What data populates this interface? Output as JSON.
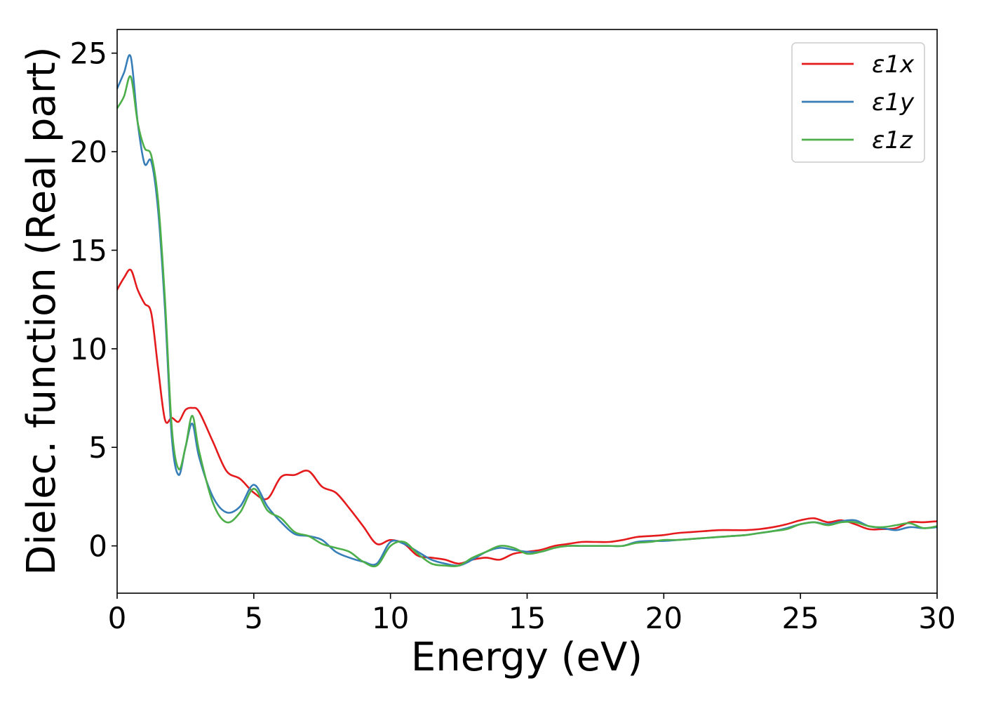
{
  "chart_data": {
    "type": "line",
    "title": "",
    "xlabel": "Energy (eV)",
    "ylabel": "Dielec. function (Real part)",
    "xlim": [
      0,
      30
    ],
    "ylim": [
      -2.4,
      26.2
    ],
    "xticks": [
      0,
      5,
      10,
      15,
      20,
      25,
      30
    ],
    "yticks": [
      0,
      5,
      10,
      15,
      20,
      25
    ],
    "grid": false,
    "legend_position": "top-right",
    "series": [
      {
        "name": "ε1x",
        "color": "#e41a1c",
        "x": [
          0,
          0.25,
          0.5,
          0.75,
          1.0,
          1.25,
          1.5,
          1.75,
          2.0,
          2.25,
          2.5,
          2.75,
          3.0,
          3.5,
          4.0,
          4.5,
          5.0,
          5.5,
          6.0,
          6.5,
          7.0,
          7.5,
          8.0,
          8.5,
          9.0,
          9.5,
          10.0,
          10.5,
          11.0,
          11.5,
          12.0,
          12.5,
          13.0,
          13.5,
          14.0,
          14.5,
          15.0,
          15.5,
          16.0,
          16.5,
          17.0,
          17.5,
          18.0,
          18.5,
          19.0,
          19.5,
          20.0,
          20.5,
          21.0,
          21.5,
          22.0,
          22.5,
          23.0,
          23.5,
          24.0,
          24.5,
          25.0,
          25.5,
          26.0,
          26.5,
          27.0,
          27.5,
          28.0,
          28.5,
          29.0,
          29.5,
          30.0
        ],
        "values": [
          13.0,
          13.6,
          14.0,
          13.0,
          12.3,
          11.8,
          9.0,
          6.4,
          6.5,
          6.3,
          6.9,
          7.0,
          6.8,
          5.3,
          3.8,
          3.4,
          2.7,
          2.4,
          3.5,
          3.6,
          3.8,
          3.0,
          2.7,
          1.9,
          1.0,
          0.1,
          0.3,
          0.1,
          -0.5,
          -0.6,
          -0.7,
          -0.9,
          -0.7,
          -0.6,
          -0.7,
          -0.4,
          -0.3,
          -0.2,
          0.0,
          0.1,
          0.2,
          0.2,
          0.2,
          0.3,
          0.45,
          0.5,
          0.55,
          0.65,
          0.7,
          0.75,
          0.8,
          0.8,
          0.8,
          0.85,
          0.95,
          1.1,
          1.3,
          1.4,
          1.2,
          1.3,
          1.1,
          0.85,
          0.85,
          0.9,
          1.2,
          1.2,
          1.25
        ]
      },
      {
        "name": "ε1y",
        "color": "#377eb8",
        "x": [
          0,
          0.25,
          0.5,
          0.75,
          1.0,
          1.25,
          1.5,
          1.75,
          2.0,
          2.25,
          2.5,
          2.75,
          3.0,
          3.5,
          4.0,
          4.5,
          5.0,
          5.5,
          6.0,
          6.5,
          7.0,
          7.5,
          8.0,
          8.5,
          9.0,
          9.5,
          10.0,
          10.5,
          11.0,
          11.5,
          12.0,
          12.5,
          13.0,
          13.5,
          14.0,
          14.5,
          15.0,
          15.5,
          16.0,
          16.5,
          17.0,
          17.5,
          18.0,
          18.5,
          19.0,
          19.5,
          20.0,
          20.5,
          21.0,
          21.5,
          22.0,
          22.5,
          23.0,
          23.5,
          24.0,
          24.5,
          25.0,
          25.5,
          26.0,
          26.5,
          27.0,
          27.5,
          28.0,
          28.5,
          29.0,
          29.5,
          30.0
        ],
        "values": [
          23.2,
          24.0,
          24.8,
          21.5,
          19.4,
          19.5,
          17.0,
          12.0,
          5.5,
          3.6,
          5.0,
          6.2,
          4.5,
          2.5,
          1.7,
          2.0,
          3.1,
          2.0,
          1.2,
          0.6,
          0.5,
          0.3,
          -0.3,
          -0.6,
          -0.8,
          -0.9,
          0.2,
          0.1,
          -0.3,
          -0.7,
          -0.9,
          -1.0,
          -0.7,
          -0.3,
          -0.1,
          -0.2,
          -0.3,
          -0.3,
          -0.1,
          0.0,
          0.0,
          0.0,
          0.0,
          0.0,
          0.2,
          0.25,
          0.25,
          0.3,
          0.35,
          0.4,
          0.45,
          0.5,
          0.55,
          0.65,
          0.75,
          0.9,
          1.1,
          1.2,
          1.1,
          1.25,
          1.3,
          1.0,
          0.9,
          0.8,
          0.95,
          0.9,
          0.95
        ]
      },
      {
        "name": "ε1z",
        "color": "#4daf4a",
        "x": [
          0,
          0.25,
          0.5,
          0.75,
          1.0,
          1.25,
          1.5,
          1.75,
          2.0,
          2.25,
          2.5,
          2.75,
          3.0,
          3.5,
          4.0,
          4.5,
          5.0,
          5.5,
          6.0,
          6.5,
          7.0,
          7.5,
          8.0,
          8.5,
          9.0,
          9.5,
          10.0,
          10.5,
          11.0,
          11.5,
          12.0,
          12.5,
          13.0,
          13.5,
          14.0,
          14.5,
          15.0,
          15.5,
          16.0,
          16.5,
          17.0,
          17.5,
          18.0,
          18.5,
          19.0,
          19.5,
          20.0,
          20.5,
          21.0,
          21.5,
          22.0,
          22.5,
          23.0,
          23.5,
          24.0,
          24.5,
          25.0,
          25.5,
          26.0,
          26.5,
          27.0,
          27.5,
          28.0,
          28.5,
          29.0,
          29.5,
          30.0
        ],
        "values": [
          22.2,
          22.8,
          23.8,
          21.5,
          20.2,
          19.8,
          17.5,
          12.5,
          6.0,
          3.9,
          5.0,
          6.6,
          4.8,
          2.2,
          1.2,
          1.7,
          2.9,
          1.8,
          1.4,
          0.7,
          0.5,
          0.1,
          -0.1,
          -0.3,
          -0.8,
          -1.0,
          0.0,
          0.2,
          -0.4,
          -0.9,
          -1.0,
          -1.0,
          -0.6,
          -0.3,
          0.0,
          -0.1,
          -0.4,
          -0.3,
          -0.1,
          0.0,
          0.0,
          0.0,
          0.0,
          0.0,
          0.15,
          0.2,
          0.3,
          0.3,
          0.35,
          0.4,
          0.45,
          0.5,
          0.55,
          0.65,
          0.75,
          0.85,
          1.1,
          1.2,
          1.05,
          1.2,
          1.2,
          1.0,
          0.95,
          1.05,
          1.15,
          0.9,
          1.0
        ]
      }
    ]
  }
}
